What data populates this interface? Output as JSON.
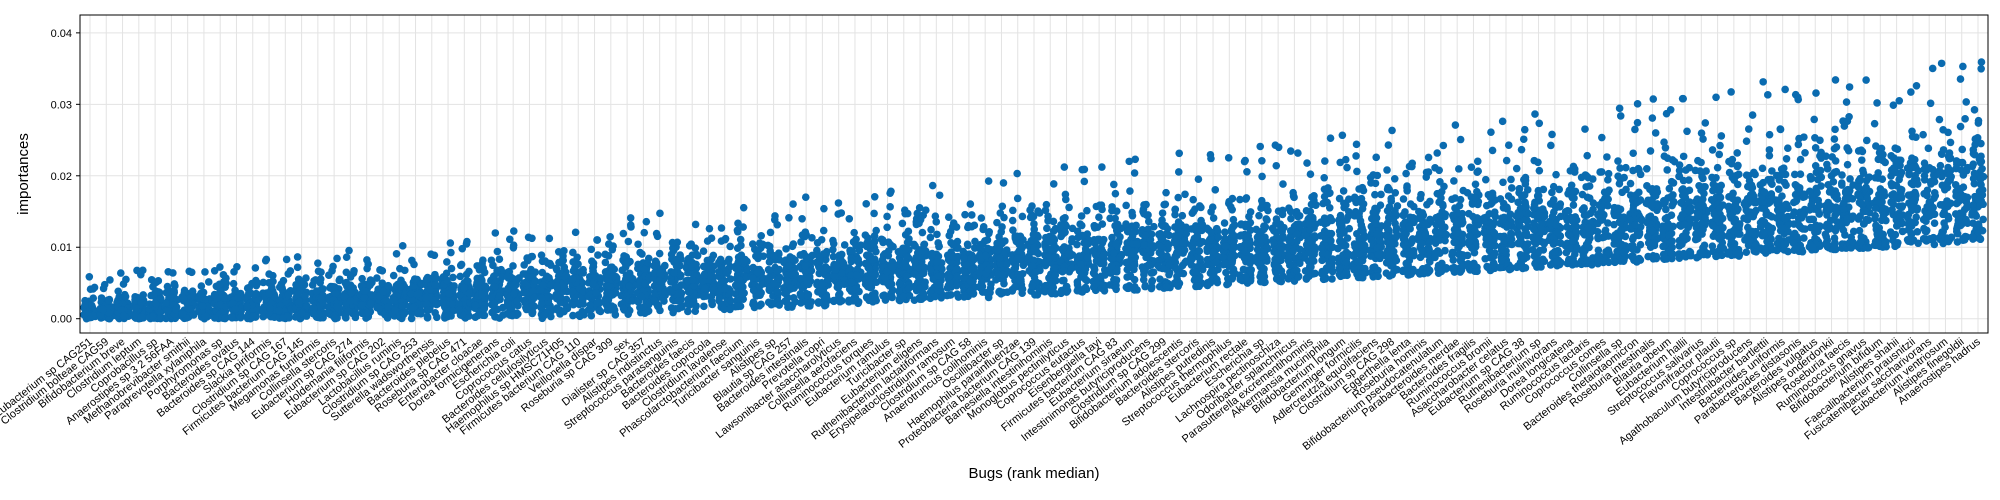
{
  "chart_data": {
    "type": "scatter",
    "xlabel": "Bugs (rank median)",
    "ylabel": "importances",
    "ylim": [
      -0.002,
      0.0425
    ],
    "yticks": [
      0.0,
      0.01,
      0.02,
      0.03,
      0.04
    ],
    "ytick_labels": [
      "0.00",
      "0.01",
      "0.02",
      "0.03",
      "0.04"
    ],
    "grid": true,
    "marker_color": "#0a6bb0",
    "categories": [
      "Eubacterium sp CAG251",
      "Clostridium bolteae CAG59",
      "Bifidobacterium breve",
      "Clostridium leptum",
      "Coprobacillus sp",
      "Anaerostipes sp 3 2 56FAA",
      "Methanobrevibacter smithii",
      "Paraprevotella xylaniphila",
      "Porphyromonas sp",
      "Bacteroides ovatus",
      "Bacteroides sp CAG 144",
      "Slackia piriformis",
      "Clostridium sp CAG 167",
      "Firmicutes bacterium CAG 145",
      "Megamonas funiformis",
      "Collinsella stercoris",
      "Eubacterium sp CAG 274",
      "Holdemania filiformis",
      "Eubacterium sp CAG 202",
      "Lactobacillus ruminis",
      "Clostridium sp CAG 253",
      "Sutterella wadsworthensis",
      "Bacteroides plebeius",
      "Roseburia sp CAG 471",
      "Enterobacter cloacae",
      "Dorea formicigenerans",
      "Escherichia coli",
      "Coprococcus catus",
      "Bacteroides cellulosilyticus",
      "Haemophilus sp HMSC71H05",
      "Firmicutes bacterium CAG 110",
      "Veillonella dispar",
      "Roseburia sp CAG 309",
      "sex",
      "Dialister sp CAG 357",
      "Alistipes indistinctus",
      "Streptococcus parasanguinis",
      "Bacteroides faecis",
      "Bacteroides coprocola",
      "Clostridium lavalense",
      "Phascolarctobacterium faecium",
      "Turicibacter sanguinis",
      "Alistipes sp",
      "Blautia sp CAG 257",
      "Bacteroides intestinalis",
      "Prevotella copri",
      "Lawsonibacter asaccharolyticus",
      "Collinsella aerofaciens",
      "Ruminococcus torques",
      "Eubacterium ramulus",
      "Turicibacter sp",
      "Eubacterium eligens",
      "Ruthenibacterium lactatiformans",
      "Erysipelatoclostridium ramosum",
      "Clostridium sp CAG 58",
      "Anaerotruncus colihominis",
      "Oscillibacter sp",
      "Haemophilus parainfluenzae",
      "Proteobacteria bacterium CAG 139",
      "Barnesiella intestinihominis",
      "Monoglobus pectinilyticus",
      "Coprococcus eutactus",
      "Eisenbergiella tayi",
      "Firmicutes bacterium CAG 83",
      "Eubacterium siraeum",
      "Intestinimonas butyriciproducens",
      "Clostridium sp CAG 299",
      "Bifidobacterium adolescentis",
      "Bacteroides stercoris",
      "Alistipes putredinis",
      "Streptococcus thermophilus",
      "Eubacterium rectale",
      "Escherichia sp",
      "Lachnospira pectinoschiza",
      "Odoribacter splanchnicus",
      "Parasutterella excrementihominis",
      "Akkermansia muciniphila",
      "Bifidobacterium longum",
      "Gemmiger formicilis",
      "Adlercreutzia equolifaciens",
      "Clostridium sp CAG 298",
      "Eggerthella lenta",
      "Roseburia hominis",
      "Bifidobacterium pseudocatenulatum",
      "Parabacteroides merdae",
      "Bacteroides fragilis",
      "Ruminococcus bromii",
      "Asaccharobacter celatus",
      "Eubacterium sp CAG 38",
      "Ruthenibacterium sp",
      "Roseburia inulinivorans",
      "Dorea longicatena",
      "Ruminococcus lactaris",
      "Coprococcus comes",
      "Collinsella sp",
      "Bacteroides thetaiotaomicron",
      "Roseburia intestinalis",
      "Blautia obeum",
      "Eubacterium hallii",
      "Streptococcus salivarius",
      "Flavonifractor plautii",
      "Coprococcus sp",
      "Agathobaculum butyriciproducens",
      "Intestinibacter bartlettii",
      "Bacteroides uniformis",
      "Parabacteroides distasonis",
      "Bacteroides vulgatus",
      "Alistipes onderdonkii",
      "Roseburia faecis",
      "Ruminococcus gnavus",
      "Bifidobacterium bifidum",
      "Alistipes shahii",
      "Faecalibacterium prausnitzii",
      "Fusicatenibacter saccharivorans",
      "Eubacterium ventriosum",
      "Alistipes finegoldii",
      "Anaerostipes hadrus"
    ]
  }
}
